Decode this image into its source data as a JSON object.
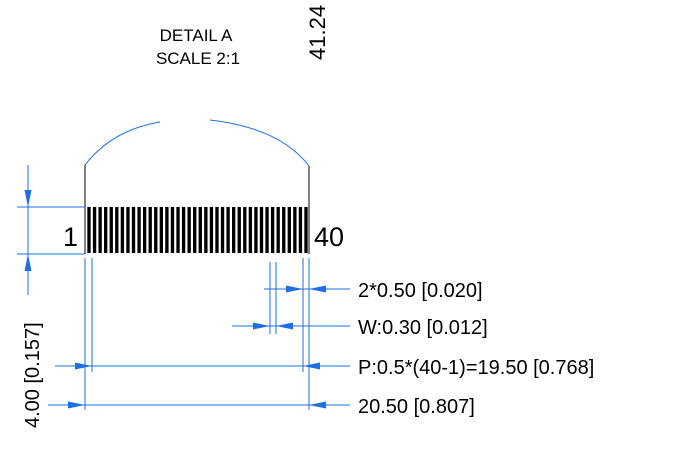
{
  "detail": {
    "title": "DETAIL A",
    "scale": "SCALE 2:1"
  },
  "top_dimension": "41.24",
  "pins": {
    "first": "1",
    "last": "40",
    "count": 40
  },
  "dimensions": {
    "height": "4.00 [0.157]",
    "edge": "2*0.50 [0.020]",
    "width": "W:0.30 [0.012]",
    "pitch": "P:0.5*(40-1)=19.50 [0.768]",
    "overall": "20.50 [0.807]"
  },
  "colors": {
    "dimension_line": "#1e6fe0",
    "outline": "#000000",
    "background": "#ffffff"
  }
}
